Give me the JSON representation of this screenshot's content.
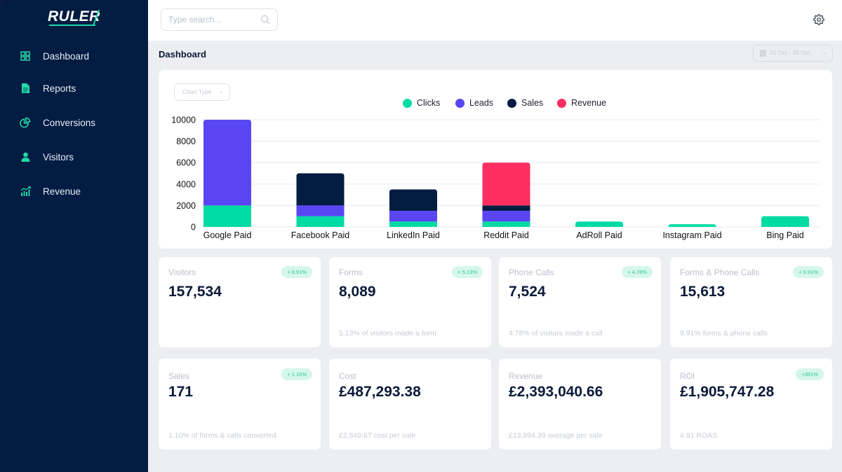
{
  "app": {
    "logo_text": "RULER"
  },
  "sidebar": {
    "items": [
      {
        "label": "Dashboard",
        "icon": "grid-icon"
      },
      {
        "label": "Reports",
        "icon": "document-icon"
      },
      {
        "label": "Conversions",
        "icon": "pie-chart-icon"
      },
      {
        "label": "Visitors",
        "icon": "user-icon"
      },
      {
        "label": "Revenue",
        "icon": "bar-growth-icon"
      }
    ]
  },
  "topbar": {
    "search_placeholder": "Type search...",
    "search_value": ""
  },
  "page": {
    "title": "Dashboard",
    "date_range": "01 Oct - 30 Oct",
    "chart_type_label": "Chart Type"
  },
  "colors": {
    "accent": "#1fd9a8",
    "clicks": "#00dba4",
    "leads": "#5946f2",
    "sales": "#031c42",
    "revenue": "#fe2e61",
    "sidebar_bg": "#031c42"
  },
  "chart_data": {
    "type": "bar",
    "stacked": true,
    "title": "",
    "xlabel": "",
    "ylabel": "",
    "ylim": [
      0,
      10000
    ],
    "yticks": [
      0,
      2000,
      4000,
      6000,
      8000,
      10000
    ],
    "grid": true,
    "legend_position": "top-center",
    "categories": [
      "Google Paid",
      "Facebook Paid",
      "LinkedIn Paid",
      "Reddit Paid",
      "AdRoll Paid",
      "Instagram Paid",
      "Bing Paid"
    ],
    "series": [
      {
        "name": "Clicks",
        "color": "#00dba4",
        "values": [
          2000,
          1000,
          500,
          500,
          500,
          250,
          1000
        ]
      },
      {
        "name": "Leads",
        "color": "#5946f2",
        "values": [
          8000,
          1000,
          1000,
          1000,
          0,
          0,
          0
        ]
      },
      {
        "name": "Sales",
        "color": "#031c42",
        "values": [
          0,
          3000,
          2000,
          500,
          0,
          0,
          0
        ]
      },
      {
        "name": "Revenue",
        "color": "#fe2e61",
        "values": [
          0,
          0,
          0,
          4000,
          0,
          0,
          0
        ]
      }
    ]
  },
  "stats": [
    {
      "label": "Visitors",
      "value": "157,534",
      "badge": "+ 9.91%",
      "sub": ""
    },
    {
      "label": "Forms",
      "value": "8,089",
      "badge": "+ 5.13%",
      "sub": "5.13% of visitors made a form"
    },
    {
      "label": "Phone Calls",
      "value": "7,524",
      "badge": "+ 4.78%",
      "sub": "4.78% of visitors made a call"
    },
    {
      "label": "Forms & Phone Calls",
      "value": "15,613",
      "badge": "+ 9.91%",
      "sub": "9.91% forms & phone calls"
    },
    {
      "label": "Sales",
      "value": "171",
      "badge": "+ 1.10%",
      "sub": "1.10% of forms & calls converted"
    },
    {
      "label": "Cost",
      "value": "£487,293.38",
      "badge": "",
      "sub": "£2,849.67 cost per sale"
    },
    {
      "label": "Revenue",
      "value": "£2,393,040.66",
      "badge": "",
      "sub": "£13,994.39 average per sale"
    },
    {
      "label": "ROI",
      "value": "£1,905,747.28",
      "badge": "+391%",
      "sub": "4.91 ROAS"
    }
  ]
}
